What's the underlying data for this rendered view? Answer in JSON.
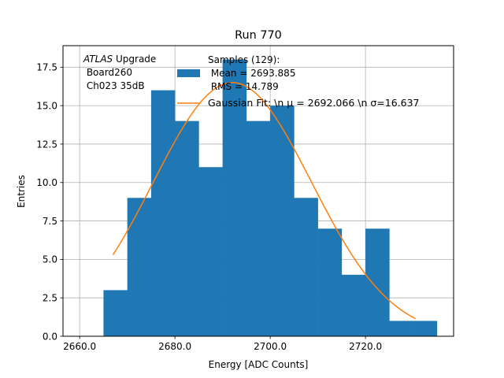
{
  "chart_data": {
    "type": "bar",
    "title": "Run 770",
    "xlabel": "Energy [ADC Counts]",
    "ylabel": "Entries",
    "xlim": [
      2656.5,
      2738.5
    ],
    "ylim": [
      0,
      18.9
    ],
    "grid": true,
    "xticks": [
      2660.0,
      2680.0,
      2700.0,
      2720.0
    ],
    "xtick_labels": [
      "2660.0",
      "2680.0",
      "2700.0",
      "2720.0"
    ],
    "yticks": [
      0.0,
      2.5,
      5.0,
      7.5,
      10.0,
      12.5,
      15.0,
      17.5
    ],
    "ytick_labels": [
      "0.0",
      "2.5",
      "5.0",
      "7.5",
      "10.0",
      "12.5",
      "15.0",
      "17.5"
    ],
    "bins": {
      "edges": [
        2665,
        2670,
        2675,
        2680,
        2685,
        2690,
        2695,
        2700,
        2705,
        2710,
        2715,
        2720,
        2725,
        2730,
        2735
      ],
      "counts": [
        3,
        9,
        16,
        14,
        11,
        18,
        14,
        15,
        9,
        7,
        4,
        7,
        1,
        1
      ]
    },
    "fit": {
      "type": "gaussian",
      "x_range": [
        2667.0,
        2730.5
      ],
      "amplitude": 16.5,
      "mu": 2692.066,
      "sigma": 16.637
    },
    "series": [
      {
        "name": "Samples",
        "kind": "histogram",
        "color": "#1f77b4"
      },
      {
        "name": "Gaussian Fit",
        "kind": "line",
        "color": "#ff7f0e"
      }
    ],
    "legend": {
      "placement": "top-right",
      "samples_lines": [
        "Samples (129):",
        " Mean = 2693.885",
        " RMS = 14.789"
      ],
      "fit_label": "Gaussian Fit: \\n μ = 2692.066 \\n σ=16.637"
    },
    "annotation": {
      "italic": "ATLAS",
      "rest": " Upgrade",
      "line2": " Board260",
      "line3": " Ch023 35dB"
    }
  }
}
